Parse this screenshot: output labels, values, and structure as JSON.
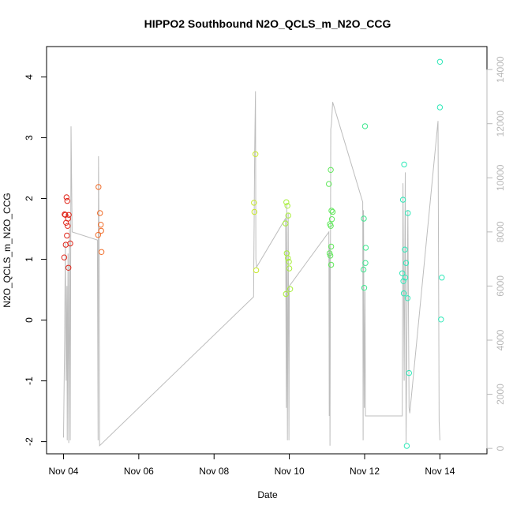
{
  "chart_data": {
    "type": "scatter",
    "title": "HIPPO2 Southbound N2O_QCLS_m_N2O_CCG",
    "xlabel": "Date",
    "ylabel": "N2O_QCLS_m_N2O_CCG",
    "x_unit": "days since Nov 04 (November, 2009)",
    "x_ticks": [
      {
        "label": "Nov 04",
        "value": 0
      },
      {
        "label": "Nov 06",
        "value": 2
      },
      {
        "label": "Nov 08",
        "value": 4
      },
      {
        "label": "Nov 10",
        "value": 6
      },
      {
        "label": "Nov 12",
        "value": 8
      },
      {
        "label": "Nov 14",
        "value": 10
      }
    ],
    "xlim": [
      -0.45,
      11.25
    ],
    "y_ticks": [
      {
        "label": "-2",
        "value": -2
      },
      {
        "label": "-1",
        "value": -1
      },
      {
        "label": "0",
        "value": 0
      },
      {
        "label": "1",
        "value": 1
      },
      {
        "label": "2",
        "value": 2
      },
      {
        "label": "3",
        "value": 3
      },
      {
        "label": "4",
        "value": 4
      }
    ],
    "ylim": [
      -2.2,
      4.5
    ],
    "y2_ticks": [
      {
        "label": "0",
        "value": 0
      },
      {
        "label": "2000",
        "value": 2000
      },
      {
        "label": "4000",
        "value": 4000
      },
      {
        "label": "6000",
        "value": 6000
      },
      {
        "label": "8000",
        "value": 8000
      },
      {
        "label": "10000",
        "value": 10000
      },
      {
        "label": "12000",
        "value": 12000
      },
      {
        "label": "14000",
        "value": 14000
      }
    ],
    "y2lim": [
      -200,
      14850
    ],
    "grid": false,
    "legend": "none",
    "colors": {
      "axis": "#000000",
      "secondary_axis": "#b8b8b8",
      "altitude_line": "#bdbdbd",
      "point_palette": [
        "#e0281c",
        "#f06d2a",
        "#c8e82a",
        "#a8ef3a",
        "#5fe85a",
        "#3ee88f",
        "#2ee8b8"
      ]
    },
    "altitude_line": {
      "name": "",
      "points": [
        [
          0.0,
          400
        ],
        [
          0.03,
          4000
        ],
        [
          0.05,
          7600
        ],
        [
          0.07,
          2500
        ],
        [
          0.09,
          6000
        ],
        [
          0.1,
          300
        ],
        [
          0.12,
          7200
        ],
        [
          0.14,
          200
        ],
        [
          0.16,
          8100
        ],
        [
          0.18,
          300
        ],
        [
          0.2,
          11900
        ],
        [
          0.23,
          8000
        ],
        [
          0.9,
          7700
        ],
        [
          0.92,
          300
        ],
        [
          0.93,
          10800
        ],
        [
          0.95,
          6200
        ],
        [
          0.96,
          100
        ],
        [
          5.05,
          5600
        ],
        [
          5.08,
          11000
        ],
        [
          5.1,
          13200
        ],
        [
          5.11,
          7000
        ],
        [
          5.13,
          6700
        ],
        [
          5.9,
          8500
        ],
        [
          5.92,
          1500
        ],
        [
          5.93,
          9000
        ],
        [
          5.95,
          300
        ],
        [
          5.97,
          8700
        ],
        [
          5.99,
          300
        ],
        [
          6.0,
          6000
        ],
        [
          7.05,
          8000
        ],
        [
          7.06,
          1200
        ],
        [
          7.07,
          7500
        ],
        [
          7.08,
          100
        ],
        [
          7.1,
          11800
        ],
        [
          7.12,
          12000
        ],
        [
          7.15,
          12800
        ],
        [
          7.95,
          9100
        ],
        [
          7.96,
          300
        ],
        [
          7.97,
          8800
        ],
        [
          7.99,
          1500
        ],
        [
          8.01,
          5800
        ],
        [
          8.02,
          1200
        ],
        [
          9.0,
          1200
        ],
        [
          9.02,
          9800
        ],
        [
          9.05,
          2500
        ],
        [
          9.08,
          10200
        ],
        [
          9.1,
          200
        ],
        [
          9.15,
          8800
        ],
        [
          9.18,
          1500
        ],
        [
          9.2,
          1300
        ],
        [
          9.95,
          12100
        ],
        [
          9.98,
          1000
        ],
        [
          10.0,
          300
        ]
      ]
    },
    "series": [
      {
        "color": "#e0281c",
        "points": [
          [
            0.05,
            1.73
          ],
          [
            0.08,
            2.02
          ],
          [
            0.1,
            1.96
          ],
          [
            0.03,
            1.74
          ],
          [
            0.07,
            1.6
          ],
          [
            0.12,
            1.67
          ],
          [
            0.14,
            1.73
          ],
          [
            0.11,
            1.55
          ],
          [
            0.09,
            1.39
          ],
          [
            0.06,
            1.24
          ],
          [
            0.18,
            1.26
          ],
          [
            0.02,
            1.03
          ],
          [
            0.13,
            0.86
          ]
        ]
      },
      {
        "color": "#f06d2a",
        "points": [
          [
            0.93,
            2.19
          ],
          [
            0.97,
            1.76
          ],
          [
            0.99,
            1.57
          ],
          [
            1.0,
            1.47
          ],
          [
            0.92,
            1.4
          ],
          [
            1.01,
            1.12
          ]
        ]
      },
      {
        "color": "#c8e82a",
        "points": [
          [
            5.1,
            2.73
          ],
          [
            5.06,
            1.93
          ],
          [
            5.07,
            1.78
          ],
          [
            5.12,
            0.82
          ]
        ]
      },
      {
        "color": "#a8ef3a",
        "points": [
          [
            5.92,
            1.94
          ],
          [
            5.95,
            1.88
          ],
          [
            5.97,
            1.72
          ],
          [
            5.9,
            1.59
          ],
          [
            5.93,
            1.1
          ],
          [
            5.96,
            1.02
          ],
          [
            5.99,
            0.96
          ],
          [
            6.0,
            0.85
          ],
          [
            5.91,
            0.43
          ],
          [
            6.02,
            0.51
          ]
        ]
      },
      {
        "color": "#5fe85a",
        "points": [
          [
            7.1,
            2.47
          ],
          [
            7.05,
            2.24
          ],
          [
            7.12,
            1.8
          ],
          [
            7.15,
            1.78
          ],
          [
            7.13,
            1.66
          ],
          [
            7.08,
            1.58
          ],
          [
            7.1,
            1.55
          ],
          [
            7.11,
            1.21
          ],
          [
            7.07,
            1.1
          ],
          [
            7.09,
            1.06
          ],
          [
            7.11,
            0.91
          ]
        ]
      },
      {
        "color": "#3ee88f",
        "points": [
          [
            8.01,
            3.19
          ],
          [
            7.98,
            1.67
          ],
          [
            8.03,
            1.19
          ],
          [
            8.02,
            0.94
          ],
          [
            7.97,
            0.83
          ],
          [
            7.99,
            0.53
          ]
        ]
      },
      {
        "color": "#2ee8b8",
        "points": [
          [
            10.0,
            4.25
          ],
          [
            10.0,
            3.5
          ],
          [
            9.05,
            2.56
          ],
          [
            9.02,
            1.98
          ],
          [
            9.15,
            1.76
          ],
          [
            9.07,
            1.16
          ],
          [
            9.1,
            0.94
          ],
          [
            9.0,
            0.77
          ],
          [
            9.08,
            0.7
          ],
          [
            10.05,
            0.7
          ],
          [
            9.03,
            0.64
          ],
          [
            9.04,
            0.44
          ],
          [
            9.14,
            0.36
          ],
          [
            10.03,
            0.01
          ],
          [
            9.18,
            -0.87
          ],
          [
            9.12,
            -2.07
          ]
        ]
      }
    ]
  }
}
